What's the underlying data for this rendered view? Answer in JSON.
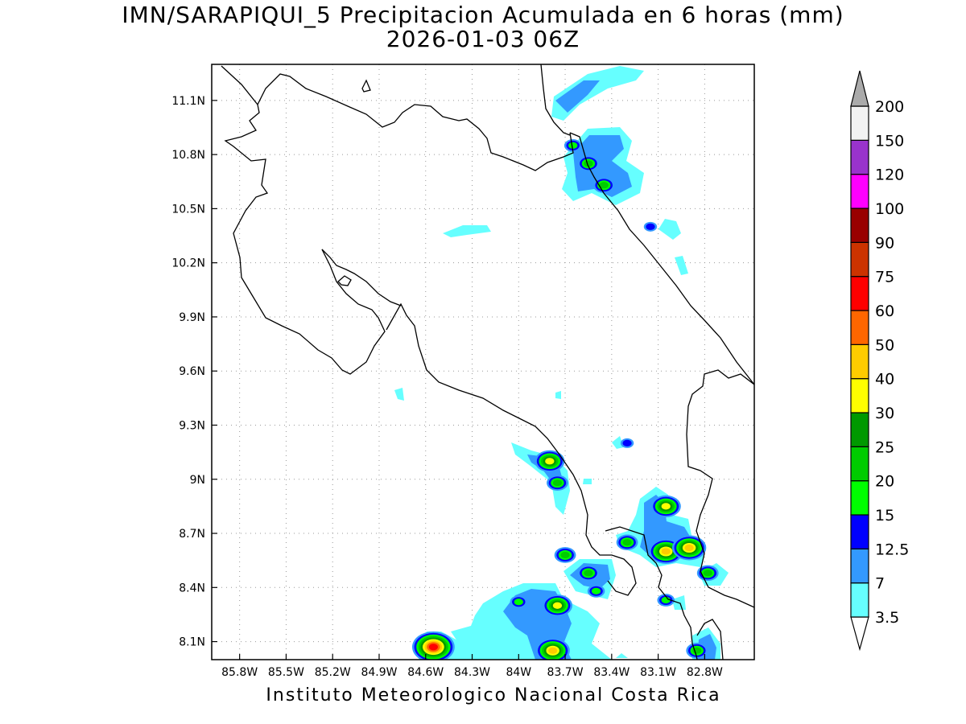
{
  "title": "IMN/SARAPIQUI_5 Precipitacion Acumulada en 6 horas (mm)",
  "subtitle": "2026-01-03 06Z",
  "footer": "Instituto Meteorologico Nacional Costa Rica",
  "map": {
    "lon_range": [
      -85.98,
      -82.48
    ],
    "lat_range": [
      8.0,
      11.3
    ],
    "x_ticks": [
      {
        "value": -85.8,
        "label": "85.8W"
      },
      {
        "value": -85.5,
        "label": "85.5W"
      },
      {
        "value": -85.2,
        "label": "85.2W"
      },
      {
        "value": -84.9,
        "label": "84.9W"
      },
      {
        "value": -84.6,
        "label": "84.6W"
      },
      {
        "value": -84.3,
        "label": "84.3W"
      },
      {
        "value": -84.0,
        "label": "84W"
      },
      {
        "value": -83.7,
        "label": "83.7W"
      },
      {
        "value": -83.4,
        "label": "83.4W"
      },
      {
        "value": -83.1,
        "label": "83.1W"
      },
      {
        "value": -82.8,
        "label": "82.8W"
      }
    ],
    "y_ticks": [
      {
        "value": 11.1,
        "label": "11.1N"
      },
      {
        "value": 10.8,
        "label": "10.8N"
      },
      {
        "value": 10.5,
        "label": "10.5N"
      },
      {
        "value": 10.2,
        "label": "10.2N"
      },
      {
        "value": 9.9,
        "label": "9.9N"
      },
      {
        "value": 9.6,
        "label": "9.6N"
      },
      {
        "value": 9.3,
        "label": "9.3N"
      },
      {
        "value": 9.0,
        "label": "9N"
      },
      {
        "value": 8.7,
        "label": "8.7N"
      },
      {
        "value": 8.4,
        "label": "8.4N"
      },
      {
        "value": 8.1,
        "label": "8.1N"
      }
    ],
    "grid": true
  },
  "legend": {
    "levels": [
      {
        "label": "3.5",
        "color": "#66ffff"
      },
      {
        "label": "7",
        "color": "#3399ff"
      },
      {
        "label": "12.5",
        "color": "#0000ff"
      },
      {
        "label": "15",
        "color": "#00ff00"
      },
      {
        "label": "20",
        "color": "#00cc00"
      },
      {
        "label": "25",
        "color": "#009900"
      },
      {
        "label": "30",
        "color": "#ffff00"
      },
      {
        "label": "40",
        "color": "#ffcc00"
      },
      {
        "label": "50",
        "color": "#ff6600"
      },
      {
        "label": "60",
        "color": "#ff0000"
      },
      {
        "label": "75",
        "color": "#cc3300"
      },
      {
        "label": "90",
        "color": "#990000"
      },
      {
        "label": "100",
        "color": "#ff00ff"
      },
      {
        "label": "120",
        "color": "#9933cc"
      },
      {
        "label": "150",
        "color": "#f2f2f2"
      },
      {
        "label": "200",
        "color": "#aaaaaa"
      }
    ]
  },
  "precip_cells": [
    {
      "lon": -83.65,
      "lat": 10.85,
      "level": 3
    },
    {
      "lon": -83.55,
      "lat": 10.75,
      "level": 4
    },
    {
      "lon": -83.45,
      "lat": 10.63,
      "level": 4
    },
    {
      "lon": -83.15,
      "lat": 10.4,
      "level": 2
    },
    {
      "lon": -83.3,
      "lat": 9.2,
      "level": 2
    },
    {
      "lon": -83.8,
      "lat": 9.1,
      "level": 6
    },
    {
      "lon": -83.75,
      "lat": 8.98,
      "level": 4
    },
    {
      "lon": -83.05,
      "lat": 8.85,
      "level": 6
    },
    {
      "lon": -83.3,
      "lat": 8.65,
      "level": 4
    },
    {
      "lon": -83.05,
      "lat": 8.6,
      "level": 7
    },
    {
      "lon": -82.9,
      "lat": 8.62,
      "level": 7
    },
    {
      "lon": -82.78,
      "lat": 8.48,
      "level": 4
    },
    {
      "lon": -83.55,
      "lat": 8.48,
      "level": 4
    },
    {
      "lon": -83.7,
      "lat": 8.58,
      "level": 4
    },
    {
      "lon": -83.75,
      "lat": 8.3,
      "level": 6
    },
    {
      "lon": -84.0,
      "lat": 8.32,
      "level": 3
    },
    {
      "lon": -83.78,
      "lat": 8.05,
      "level": 7
    },
    {
      "lon": -84.55,
      "lat": 8.07,
      "level": 9
    },
    {
      "lon": -82.85,
      "lat": 8.05,
      "level": 4
    },
    {
      "lon": -83.5,
      "lat": 8.38,
      "level": 3
    },
    {
      "lon": -83.05,
      "lat": 8.33,
      "level": 3
    }
  ]
}
